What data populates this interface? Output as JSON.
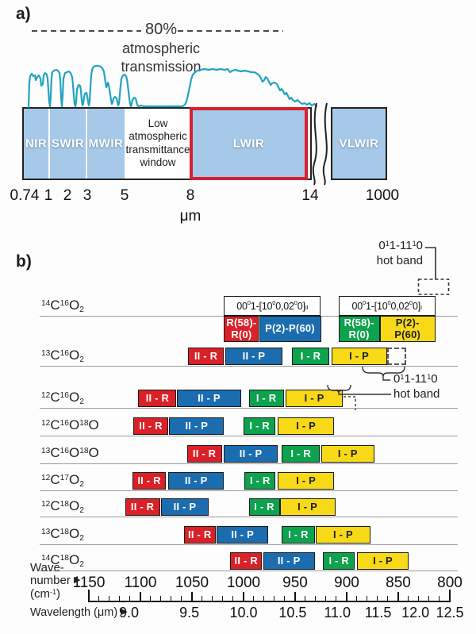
{
  "figure": {
    "panel_a_label": "a)",
    "panel_b_label": "b)"
  },
  "panel_a": {
    "note": {
      "percent": "80%",
      "line1": "atmospheric",
      "line2": "transmission"
    },
    "bands": [
      {
        "name": "NIR"
      },
      {
        "name": "SWIR"
      },
      {
        "name": "MWIR"
      },
      {
        "name": "Low\natmospheric\ntransmittance\nwindow",
        "window": true
      },
      {
        "name": "LWIR",
        "highlighted": true
      },
      {
        "name": "VLWIR"
      }
    ],
    "ticks": [
      "0.74",
      "1",
      "2",
      "3",
      "5",
      "8",
      "14",
      "1000"
    ],
    "unit": "μm"
  },
  "chart_data": {
    "type": "band-diagram",
    "x_axis": {
      "pointer": "▶",
      "wavenumber": {
        "label_lines": [
          "Wave-",
          "number",
          "(cm^{-1})"
        ],
        "ticks": [
          1150,
          1100,
          1050,
          1000,
          950,
          900,
          850,
          800
        ],
        "minor_step": 10,
        "range": [
          1150,
          800
        ]
      },
      "wavelength": {
        "label": "Wavelength (μm)",
        "ticks": [
          "9.0",
          "9.5",
          "10.0",
          "10.5",
          "11.0",
          "11.5",
          "12.0",
          "12.5"
        ]
      }
    },
    "legend": {
      "red": "II - R branch",
      "blue": "II - P branch",
      "green": "I - R branch",
      "yellow": "I - P branch"
    },
    "colors": {
      "red": "#da2128",
      "blue": "#1b6db0",
      "green": "#0da24d",
      "yellow": "#f7d917"
    },
    "hot_band_annotations": [
      {
        "text": "0^{1}1-11^{1}0",
        "text2": "hot band"
      },
      {
        "text": "0^{1}1-11^{1}0",
        "text2": "hot band"
      }
    ],
    "rows": [
      {
        "molecule": "^{14}C^{16}O_{2}",
        "tall": true,
        "group_labels": [
          {
            "text": "00^{0}1-[10^{0}0,02^{0}0]_{II}",
            "from": 1019,
            "to": 925
          },
          {
            "text": "00^{0}1-[10^{0}0,02^{0}0]_{I}",
            "from": 908,
            "to": 814
          }
        ],
        "bands": [
          {
            "color": "red",
            "label": "R(58)-\nR(0)",
            "from": 1019,
            "to": 985
          },
          {
            "color": "blue",
            "label": "P(2)-P(60)",
            "from": 985,
            "to": 925
          },
          {
            "color": "green",
            "label": "R(58)-\nR(0)",
            "from": 908,
            "to": 868
          },
          {
            "color": "yellow",
            "label": "P(2)-\nP(60)",
            "from": 868,
            "to": 814
          }
        ]
      },
      {
        "molecule": "^{13}C^{16}O_{2}",
        "bands": [
          {
            "color": "red",
            "label": "II - R",
            "from": 1054,
            "to": 1019
          },
          {
            "color": "blue",
            "label": "II - P",
            "from": 1018,
            "to": 962
          },
          {
            "color": "green",
            "label": "I - R",
            "from": 953,
            "to": 917
          },
          {
            "color": "yellow",
            "label": "I - P",
            "from": 915,
            "to": 861
          },
          {
            "color": "dashed",
            "label": "",
            "from": 861,
            "to": 842
          }
        ]
      },
      {
        "molecule": "^{12}C^{16}O_{2}",
        "bands": [
          {
            "color": "red",
            "label": "II - R",
            "from": 1102,
            "to": 1065
          },
          {
            "color": "blue",
            "label": "II - P",
            "from": 1065,
            "to": 1002
          },
          {
            "color": "green",
            "label": "I - R",
            "from": 995,
            "to": 961
          },
          {
            "color": "yellow",
            "label": "I - P",
            "from": 959,
            "to": 904
          }
        ]
      },
      {
        "molecule": "^{12}C^{16}O^{18}O",
        "bands": [
          {
            "color": "red",
            "label": "II - R",
            "from": 1107,
            "to": 1073
          },
          {
            "color": "blue",
            "label": "II - P",
            "from": 1072,
            "to": 1019
          },
          {
            "color": "green",
            "label": "I - R",
            "from": 1000,
            "to": 969
          },
          {
            "color": "yellow",
            "label": "I - P",
            "from": 967,
            "to": 912
          }
        ]
      },
      {
        "molecule": "^{13}C^{16}O^{18}O",
        "bands": [
          {
            "color": "red",
            "label": "II - R",
            "from": 1055,
            "to": 1021
          },
          {
            "color": "blue",
            "label": "II - P",
            "from": 1019,
            "to": 967
          },
          {
            "color": "green",
            "label": "I - R",
            "from": 963,
            "to": 926
          },
          {
            "color": "yellow",
            "label": "I - P",
            "from": 925,
            "to": 873
          }
        ]
      },
      {
        "molecule": "^{12}C^{17}O_{2}",
        "bands": [
          {
            "color": "red",
            "label": "II - R",
            "from": 1108,
            "to": 1075
          },
          {
            "color": "blue",
            "label": "II - P",
            "from": 1073,
            "to": 1019
          },
          {
            "color": "green",
            "label": "I - R",
            "from": 999,
            "to": 969
          },
          {
            "color": "yellow",
            "label": "I - P",
            "from": 967,
            "to": 912
          }
        ]
      },
      {
        "molecule": "^{12}C^{18}O_{2}",
        "bands": [
          {
            "color": "red",
            "label": "II - R",
            "from": 1115,
            "to": 1081
          },
          {
            "color": "blue",
            "label": "II - P",
            "from": 1080,
            "to": 1034
          },
          {
            "color": "green",
            "label": "I - R",
            "from": 995,
            "to": 965
          },
          {
            "color": "yellow",
            "label": "I - P",
            "from": 965,
            "to": 911
          }
        ]
      },
      {
        "molecule": "^{13}C^{18}O_{2}",
        "bands": [
          {
            "color": "red",
            "label": "II - R",
            "from": 1058,
            "to": 1027
          },
          {
            "color": "blue",
            "label": "II - P",
            "from": 1026,
            "to": 976
          },
          {
            "color": "green",
            "label": "I - R",
            "from": 963,
            "to": 931
          },
          {
            "color": "yellow",
            "label": "I - P",
            "from": 930,
            "to": 877
          }
        ]
      },
      {
        "molecule": "^{14}C^{18}O_{2}",
        "bands": [
          {
            "color": "red",
            "label": "II - R",
            "from": 1013,
            "to": 982
          },
          {
            "color": "blue",
            "label": "II - P",
            "from": 981,
            "to": 931
          },
          {
            "color": "green",
            "label": "I - R",
            "from": 923,
            "to": 892
          },
          {
            "color": "yellow",
            "label": "I - P",
            "from": 890,
            "to": 840
          }
        ]
      }
    ]
  }
}
